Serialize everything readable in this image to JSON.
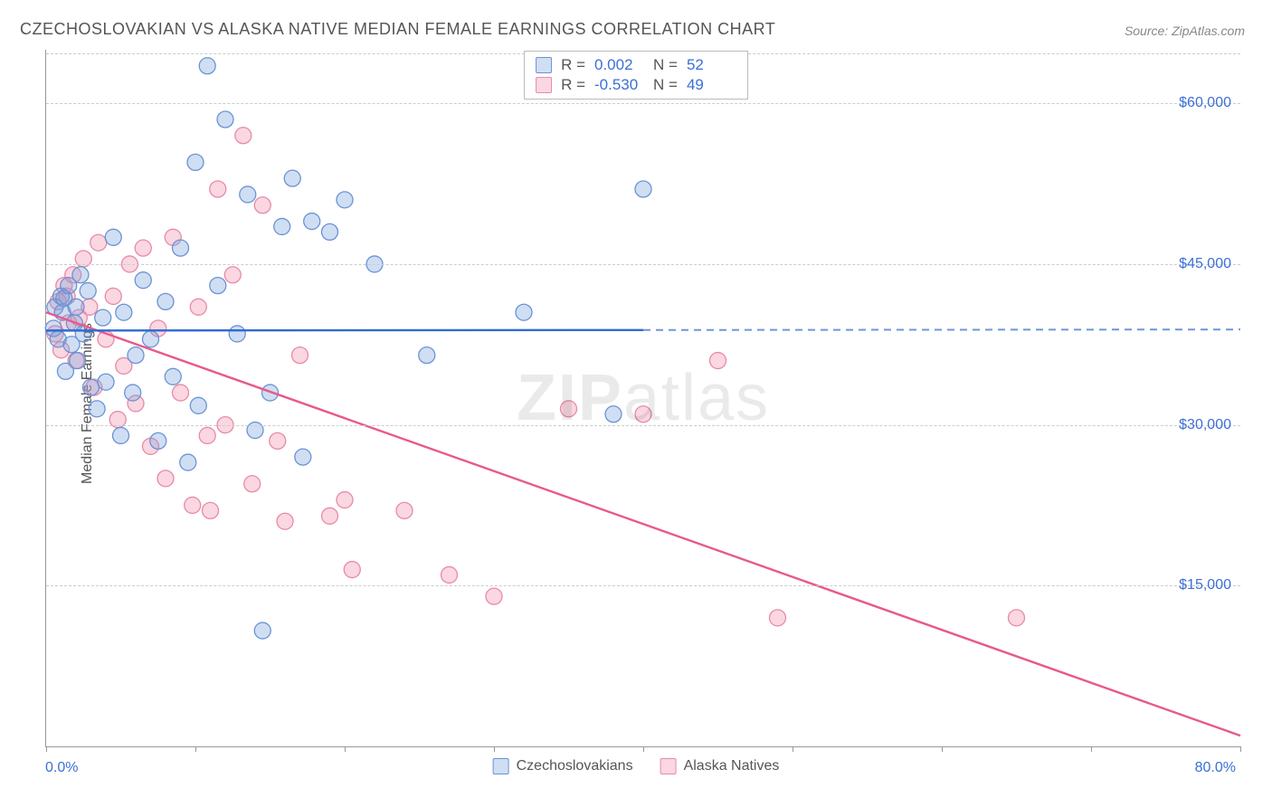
{
  "title": "CZECHOSLOVAKIAN VS ALASKA NATIVE MEDIAN FEMALE EARNINGS CORRELATION CHART",
  "source": "Source: ZipAtlas.com",
  "ylabel": "Median Female Earnings",
  "watermark_zip": "ZIP",
  "watermark_atlas": "atlas",
  "xaxis": {
    "min": 0,
    "max": 80,
    "label_min": "0.0%",
    "label_max": "80.0%",
    "ticks": [
      0,
      10,
      20,
      30,
      40,
      50,
      60,
      70,
      80
    ]
  },
  "yaxis": {
    "min": 0,
    "max": 65000,
    "ticks": [
      15000,
      30000,
      45000,
      60000
    ],
    "tick_labels": [
      "$15,000",
      "$30,000",
      "$45,000",
      "$60,000"
    ]
  },
  "grid_color": "#cccccc",
  "axis_color": "#999999",
  "label_color": "#3b6fd6",
  "series": {
    "a": {
      "name": "Czechoslovakians",
      "fill": "rgba(120,160,220,0.35)",
      "stroke": "#6a94d4",
      "line_color": "#2f6bd0",
      "marker_r": 9,
      "R_label": "R =",
      "R_value": " 0.002",
      "N_label": "N =",
      "N_value": "52",
      "trend": {
        "y_at_xmin": 38800,
        "y_at_xmax": 38900,
        "solid_until_x": 40
      },
      "points": [
        [
          0.5,
          39000
        ],
        [
          0.6,
          41000
        ],
        [
          0.8,
          38000
        ],
        [
          1.0,
          42000
        ],
        [
          1.1,
          40500
        ],
        [
          1.2,
          41800
        ],
        [
          1.3,
          35000
        ],
        [
          1.5,
          43000
        ],
        [
          1.7,
          37500
        ],
        [
          1.9,
          39500
        ],
        [
          2.0,
          41000
        ],
        [
          2.1,
          36000
        ],
        [
          2.3,
          44000
        ],
        [
          2.5,
          38500
        ],
        [
          2.8,
          42500
        ],
        [
          3.0,
          33500
        ],
        [
          3.4,
          31500
        ],
        [
          3.8,
          40000
        ],
        [
          4.0,
          34000
        ],
        [
          4.5,
          47500
        ],
        [
          5.0,
          29000
        ],
        [
          5.2,
          40500
        ],
        [
          5.8,
          33000
        ],
        [
          6.0,
          36500
        ],
        [
          6.5,
          43500
        ],
        [
          7.0,
          38000
        ],
        [
          7.5,
          28500
        ],
        [
          8.0,
          41500
        ],
        [
          8.5,
          34500
        ],
        [
          9.0,
          46500
        ],
        [
          9.5,
          26500
        ],
        [
          10.0,
          54500
        ],
        [
          10.2,
          31800
        ],
        [
          10.8,
          63500
        ],
        [
          11.5,
          43000
        ],
        [
          12.0,
          58500
        ],
        [
          12.8,
          38500
        ],
        [
          13.5,
          51500
        ],
        [
          14.0,
          29500
        ],
        [
          14.5,
          10800
        ],
        [
          15.0,
          33000
        ],
        [
          15.8,
          48500
        ],
        [
          16.5,
          53000
        ],
        [
          17.2,
          27000
        ],
        [
          17.8,
          49000
        ],
        [
          19.0,
          48000
        ],
        [
          20.0,
          51000
        ],
        [
          22.0,
          45000
        ],
        [
          25.5,
          36500
        ],
        [
          32.0,
          40500
        ],
        [
          38.0,
          31000
        ],
        [
          40.0,
          52000
        ]
      ]
    },
    "b": {
      "name": "Alaska Natives",
      "fill": "rgba(240,140,170,0.35)",
      "stroke": "#e88aa8",
      "line_color": "#e75a8a",
      "marker_r": 9,
      "R_label": "R =",
      "R_value": "-0.530",
      "N_label": "N =",
      "N_value": "49",
      "trend": {
        "y_at_xmin": 40500,
        "y_at_xmax": 1000,
        "solid_until_x": 80
      },
      "points": [
        [
          0.6,
          38500
        ],
        [
          0.8,
          41500
        ],
        [
          1.0,
          37000
        ],
        [
          1.2,
          43000
        ],
        [
          1.4,
          42000
        ],
        [
          1.5,
          39500
        ],
        [
          1.8,
          44000
        ],
        [
          2.0,
          36000
        ],
        [
          2.2,
          40000
        ],
        [
          2.5,
          45500
        ],
        [
          2.9,
          41000
        ],
        [
          3.2,
          33500
        ],
        [
          3.5,
          47000
        ],
        [
          4.0,
          38000
        ],
        [
          4.5,
          42000
        ],
        [
          4.8,
          30500
        ],
        [
          5.2,
          35500
        ],
        [
          5.6,
          45000
        ],
        [
          6.0,
          32000
        ],
        [
          6.5,
          46500
        ],
        [
          7.0,
          28000
        ],
        [
          7.5,
          39000
        ],
        [
          8.0,
          25000
        ],
        [
          8.5,
          47500
        ],
        [
          9.0,
          33000
        ],
        [
          9.8,
          22500
        ],
        [
          10.2,
          41000
        ],
        [
          10.8,
          29000
        ],
        [
          11.0,
          22000
        ],
        [
          11.5,
          52000
        ],
        [
          12.0,
          30000
        ],
        [
          12.5,
          44000
        ],
        [
          13.2,
          57000
        ],
        [
          13.8,
          24500
        ],
        [
          14.5,
          50500
        ],
        [
          15.5,
          28500
        ],
        [
          16.0,
          21000
        ],
        [
          17.0,
          36500
        ],
        [
          19.0,
          21500
        ],
        [
          20.0,
          23000
        ],
        [
          20.5,
          16500
        ],
        [
          24.0,
          22000
        ],
        [
          27.0,
          16000
        ],
        [
          30.0,
          14000
        ],
        [
          35.0,
          31500
        ],
        [
          40.0,
          31000
        ],
        [
          45.0,
          36000
        ],
        [
          49.0,
          12000
        ],
        [
          65.0,
          12000
        ]
      ]
    }
  },
  "legend_bottom": [
    {
      "key": "a"
    },
    {
      "key": "b"
    }
  ],
  "stats_rows": [
    {
      "key": "a"
    },
    {
      "key": "b"
    }
  ]
}
